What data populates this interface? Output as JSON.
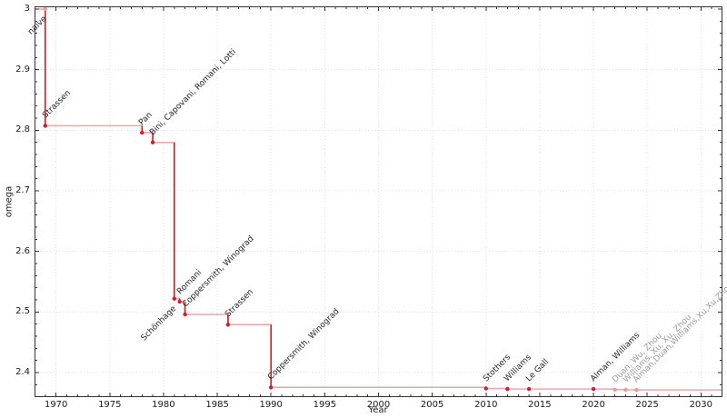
{
  "figure": {
    "background": "#ffffff",
    "frame_color": "#333333",
    "grid_color": "#dcdcdc",
    "tick_label_color": "#1a1a1a",
    "x_axis": {
      "title": "Year",
      "major_ticks": [
        1970,
        1975,
        1980,
        1985,
        1990,
        1995,
        2000,
        2005,
        2010,
        2015,
        2020,
        2025,
        2030
      ],
      "minor_tick_step_years": 1
    },
    "y_axis": {
      "title": "omega",
      "major_ticks": [
        {
          "value": 3.0,
          "label": "3"
        },
        {
          "value": 2.9,
          "label": "2.9"
        },
        {
          "value": 2.8,
          "label": "2.8"
        },
        {
          "value": 2.7,
          "label": "2.7"
        },
        {
          "value": 2.6,
          "label": "2.6"
        },
        {
          "value": 2.5,
          "label": "2.5"
        },
        {
          "value": 2.4,
          "label": "2.4"
        }
      ],
      "minor_tick_step": 0.02
    }
  },
  "chart_data": {
    "type": "line",
    "style": "step-post",
    "title": "",
    "xlabel": "Year",
    "ylabel": "omega",
    "xlim": [
      1968,
      2032
    ],
    "ylim": [
      2.3595,
      3.0045
    ],
    "grid": true,
    "legend": false,
    "colors": {
      "line": "#cf2028",
      "line_faded": "rgba(208,32,40,0.40)",
      "marker": "#cf2028",
      "marker_faded": "#e9999c",
      "label": "#262626",
      "label_faded": "#9b9b9b"
    },
    "points": [
      {
        "year": 1969,
        "omega": 3.0,
        "label": "naive",
        "label_side": "below",
        "muted": false,
        "marker_light": true
      },
      {
        "year": 1969,
        "omega": 2.8074,
        "label": "Strassen",
        "label_side": "above",
        "muted": false,
        "marker_light": false
      },
      {
        "year": 1978,
        "omega": 2.796,
        "label": "Pan",
        "label_side": "above",
        "muted": false,
        "marker_light": false
      },
      {
        "year": 1979,
        "omega": 2.78,
        "label": "Bini, Capovani, Romani, Lotti",
        "label_side": "above",
        "muted": false,
        "marker_light": false
      },
      {
        "year": 1981,
        "omega": 2.522,
        "label": "Schönhage",
        "label_side": "below",
        "muted": false,
        "marker_light": false
      },
      {
        "year": 1981.5,
        "omega": 2.517,
        "label": "Romani",
        "label_side": "above",
        "muted": false,
        "marker_light": false
      },
      {
        "year": 1982,
        "omega": 2.496,
        "label": "Coppersmith, Winograd",
        "label_side": "above",
        "muted": false,
        "marker_light": false
      },
      {
        "year": 1986,
        "omega": 2.479,
        "label": "Strassen",
        "label_side": "above",
        "muted": false,
        "marker_light": false
      },
      {
        "year": 1990,
        "omega": 2.3755,
        "label": "Coppersmith, Winograd",
        "label_side": "above",
        "muted": false,
        "marker_light": false
      },
      {
        "year": 2010,
        "omega": 2.3737,
        "label": "Stothers",
        "label_side": "above",
        "muted": false,
        "marker_light": false
      },
      {
        "year": 2012,
        "omega": 2.3729,
        "label": "Williams",
        "label_side": "above",
        "muted": false,
        "marker_light": false
      },
      {
        "year": 2014,
        "omega": 2.3728639,
        "label": "Le Gall",
        "label_side": "above",
        "muted": false,
        "marker_light": false
      },
      {
        "year": 2020,
        "omega": 2.3728596,
        "label": "Alman, Williams",
        "label_side": "above",
        "muted": false,
        "marker_light": false
      },
      {
        "year": 2022,
        "omega": 2.371866,
        "label": "Duan, Wu, Zhou",
        "label_side": "above",
        "muted": true,
        "marker_light": true
      },
      {
        "year": 2023,
        "omega": 2.371552,
        "label": "Williams, Xu, Xu, Zhou",
        "label_side": "above",
        "muted": true,
        "marker_light": true
      },
      {
        "year": 2024,
        "omega": 2.371339,
        "label": "Alman,Duan,Williams,Xu,Xu,Zhou",
        "label_side": "above",
        "muted": true,
        "marker_light": true
      }
    ]
  }
}
